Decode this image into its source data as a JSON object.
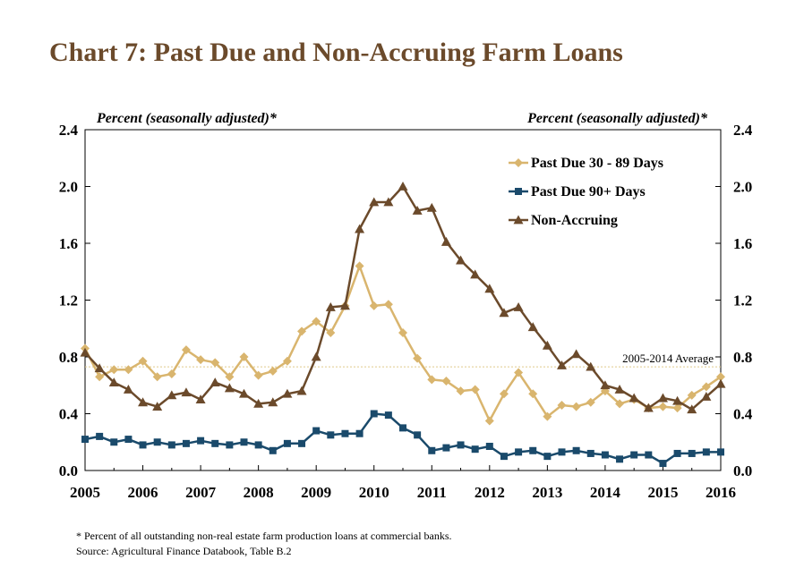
{
  "title": "Chart 7: Past Due and Non-Accruing Farm Loans",
  "footnote": "* Percent of all outstanding non-real estate farm production loans at commercial banks.",
  "source": "Source: Agricultural Finance Databook, Table B.2",
  "chart_data": {
    "type": "line",
    "ylabel_left": "Percent (seasonally adjusted)*",
    "ylabel_right": "Percent (seasonally adjusted)*",
    "ylim": [
      0,
      2.4
    ],
    "yticks": [
      "0.0",
      "0.4",
      "0.8",
      "1.2",
      "1.6",
      "2.0",
      "2.4"
    ],
    "xlim": [
      2005,
      2016
    ],
    "xticks": [
      "2005",
      "2006",
      "2007",
      "2008",
      "2009",
      "2010",
      "2011",
      "2012",
      "2013",
      "2014",
      "2015",
      "2016"
    ],
    "legend_position": "top-right",
    "grid": false,
    "average_line": {
      "label": "2005-2014 Average",
      "value": 0.73,
      "color": "#e0c98a"
    },
    "x": [
      2005.0,
      2005.25,
      2005.5,
      2005.75,
      2006.0,
      2006.25,
      2006.5,
      2006.75,
      2007.0,
      2007.25,
      2007.5,
      2007.75,
      2008.0,
      2008.25,
      2008.5,
      2008.75,
      2009.0,
      2009.25,
      2009.5,
      2009.75,
      2010.0,
      2010.25,
      2010.5,
      2010.75,
      2011.0,
      2011.25,
      2011.5,
      2011.75,
      2012.0,
      2012.25,
      2012.5,
      2012.75,
      2013.0,
      2013.25,
      2013.5,
      2013.75,
      2014.0,
      2014.25,
      2014.5,
      2014.75,
      2015.0,
      2015.25,
      2015.5,
      2015.75,
      2016.0
    ],
    "series": [
      {
        "name": "Past Due 30 - 89 Days",
        "color": "#d9b56e",
        "marker": "diamond",
        "values": [
          0.86,
          0.66,
          0.71,
          0.71,
          0.77,
          0.66,
          0.68,
          0.85,
          0.78,
          0.76,
          0.66,
          0.8,
          0.67,
          0.7,
          0.77,
          0.98,
          1.05,
          0.97,
          1.16,
          1.44,
          1.16,
          1.17,
          0.97,
          0.79,
          0.64,
          0.63,
          0.56,
          0.57,
          0.35,
          0.54,
          0.69,
          0.54,
          0.38,
          0.46,
          0.45,
          0.48,
          0.56,
          0.47,
          0.5,
          0.44,
          0.45,
          0.44,
          0.53,
          0.59,
          0.66
        ]
      },
      {
        "name": "Past Due 90+ Days",
        "color": "#1a4a6b",
        "marker": "square",
        "values": [
          0.22,
          0.24,
          0.2,
          0.22,
          0.18,
          0.2,
          0.18,
          0.19,
          0.21,
          0.19,
          0.18,
          0.2,
          0.18,
          0.14,
          0.19,
          0.19,
          0.28,
          0.25,
          0.26,
          0.26,
          0.4,
          0.39,
          0.3,
          0.25,
          0.14,
          0.16,
          0.18,
          0.15,
          0.17,
          0.1,
          0.13,
          0.14,
          0.1,
          0.13,
          0.14,
          0.12,
          0.11,
          0.08,
          0.11,
          0.11,
          0.05,
          0.12,
          0.12,
          0.13,
          0.13
        ]
      },
      {
        "name": "Non-Accruing",
        "color": "#6b4a2b",
        "marker": "triangle",
        "values": [
          0.83,
          0.72,
          0.62,
          0.57,
          0.48,
          0.45,
          0.53,
          0.55,
          0.5,
          0.62,
          0.58,
          0.54,
          0.47,
          0.48,
          0.54,
          0.56,
          0.8,
          1.15,
          1.16,
          1.7,
          1.89,
          1.89,
          2.0,
          1.83,
          1.85,
          1.61,
          1.48,
          1.38,
          1.28,
          1.11,
          1.15,
          1.01,
          0.88,
          0.74,
          0.82,
          0.73,
          0.6,
          0.57,
          0.51,
          0.44,
          0.51,
          0.49,
          0.43,
          0.52,
          0.61
        ]
      }
    ]
  }
}
